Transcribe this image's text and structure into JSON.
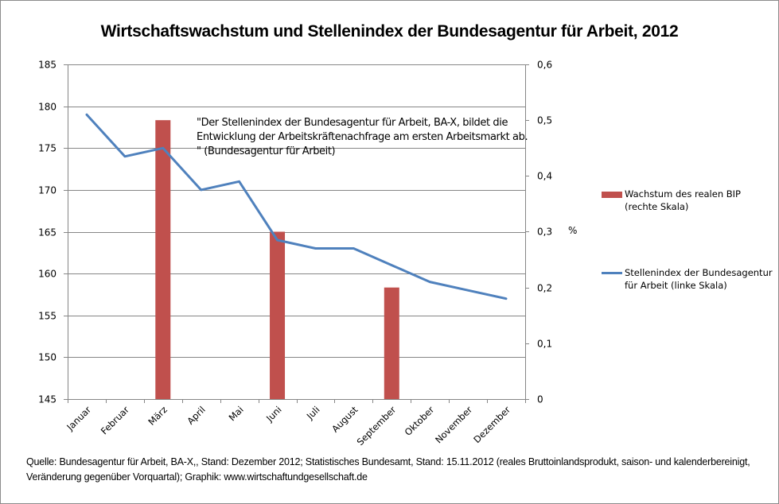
{
  "chart_data": {
    "type": "bar+line",
    "title": "Wirtschaftswachstum und Stellenindex der Bundesagentur für Arbeit, 2012",
    "categories": [
      "Januar",
      "Februar",
      "März",
      "April",
      "Mai",
      "Juni",
      "Juli",
      "August",
      "September",
      "Oktober",
      "November",
      "Dezember"
    ],
    "series": [
      {
        "name": "Wachstum des realen BIP (rechte Skala)",
        "type": "bar",
        "axis": "right",
        "color": "#c0504d",
        "values": [
          null,
          null,
          0.5,
          null,
          null,
          0.3,
          null,
          null,
          0.2,
          null,
          null,
          null
        ]
      },
      {
        "name": "Stellenindex der Bundesagentur für Arbeit (linke Skala)",
        "type": "line",
        "axis": "left",
        "color": "#4f81bd",
        "values": [
          179,
          174,
          175,
          170,
          171,
          164,
          163,
          163,
          161,
          159,
          158,
          157
        ]
      }
    ],
    "left_axis": {
      "ylim": [
        145,
        185
      ],
      "ticks": [
        "145",
        "150",
        "155",
        "160",
        "165",
        "170",
        "175",
        "180",
        "185"
      ],
      "step": 5
    },
    "right_axis": {
      "ylim": [
        0,
        0.6
      ],
      "ticks": [
        "0",
        "0,1",
        "0,2",
        "0,3",
        "0,4",
        "0,5",
        "0,6"
      ],
      "step": 0.1,
      "label": "%"
    },
    "grid": true,
    "legend_position": "right",
    "annotation": "\"Der Stellenindex der Bundesagentur für Arbeit, BA-X, bildet die Entwicklung der Arbeitskräftenachfrage am ersten Arbeitsmarkt ab. \" (Bundesagentur für Arbeit)",
    "source": "Quelle: Bundesagentur für Arbeit, BA-X,, Stand: Dezember 2012; Statistisches Bundesamt, Stand:  15.11.2012  (reales Bruttoinlandsprodukt, saison- und kalenderbereinigt, Veränderung gegenüber Vorquartal); Graphik: www.wirtschaftundgesellschaft.de"
  },
  "colors": {
    "bar": "#c0504d",
    "line": "#4f81bd",
    "grid": "#868686",
    "axis": "#868686"
  }
}
